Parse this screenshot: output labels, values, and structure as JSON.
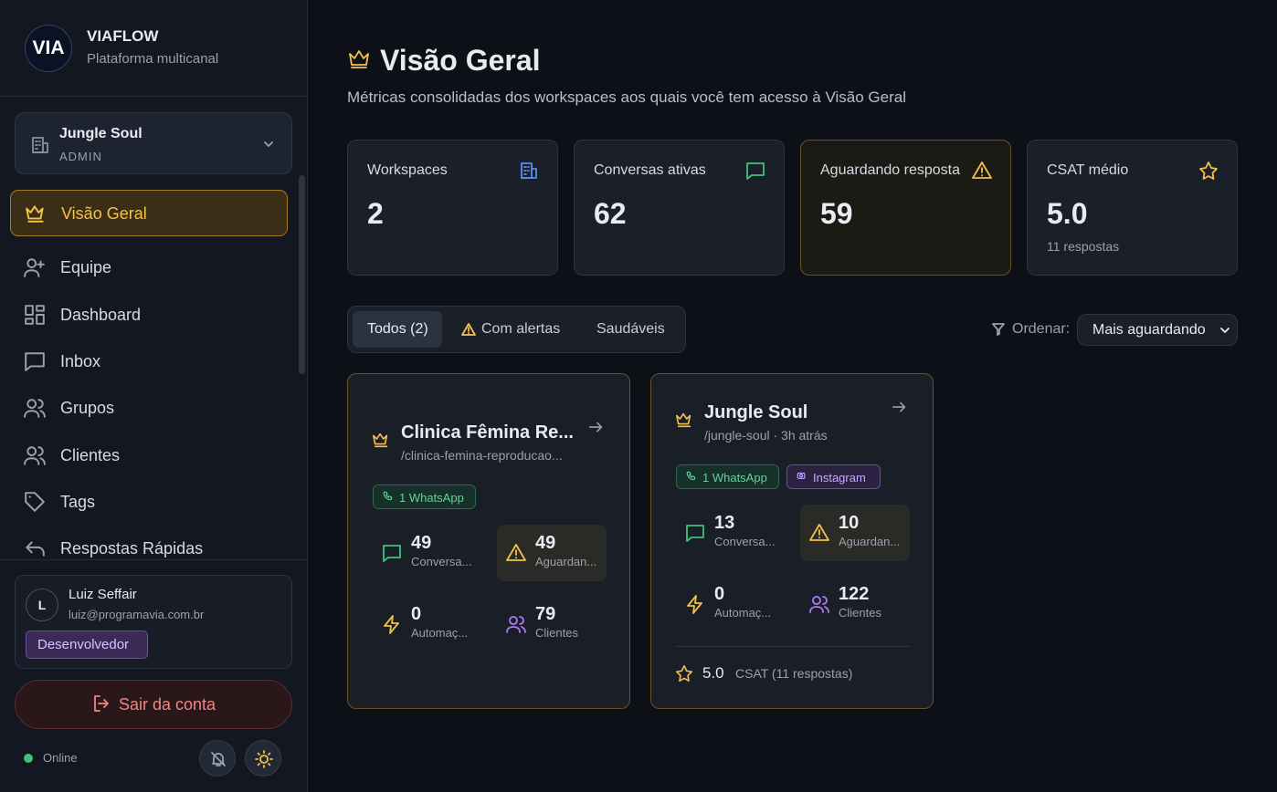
{
  "brand": {
    "logo": "VIA",
    "name": "VIAFLOW",
    "subtitle": "Plataforma multicanal"
  },
  "workspace_selector": {
    "name": "Jungle Soul",
    "role": "ADMIN"
  },
  "nav": [
    {
      "label": "Visão Geral",
      "active": true
    },
    {
      "label": "Equipe",
      "active": false
    },
    {
      "label": "Dashboard",
      "active": false
    },
    {
      "label": "Inbox",
      "active": false
    },
    {
      "label": "Grupos",
      "active": false
    },
    {
      "label": "Clientes",
      "active": false
    },
    {
      "label": "Tags",
      "active": false
    },
    {
      "label": "Respostas Rápidas",
      "active": false
    }
  ],
  "user": {
    "initial": "L",
    "name": "Luiz Seffair",
    "email": "luiz@programavia.com.br",
    "badge": "Desenvolvedor"
  },
  "logout": "Sair da conta",
  "status": "Online",
  "header": {
    "title": "Visão Geral",
    "subtitle": "Métricas consolidadas dos workspaces aos quais você tem acesso à Visão Geral"
  },
  "stats": [
    {
      "label": "Workspaces",
      "value": 2
    },
    {
      "label": "Conversas ativas",
      "value": 62
    },
    {
      "label": "Aguardando resposta",
      "value": 59
    },
    {
      "label": "CSAT médio",
      "value": "5.0",
      "note": "11 respostas"
    }
  ],
  "filters": {
    "tabs": [
      "Todos (2)",
      "Com alertas",
      "Saudáveis"
    ],
    "sort_label": "Ordenar:",
    "sort_value": "Mais aguardando"
  },
  "workspaces": [
    {
      "name": "Clinica Fêmina Re...",
      "slug": "/clinica-femina-reproducao...",
      "channels": [
        "1 WhatsApp"
      ],
      "metrics": [
        {
          "value": 49,
          "label": "Conversa..."
        },
        {
          "value": 49,
          "label": "Aguardan..."
        },
        {
          "value": 0,
          "label": "Automaç..."
        },
        {
          "value": 79,
          "label": "Clientes"
        }
      ]
    },
    {
      "name": "Jungle Soul",
      "slug": "/jungle-soul · 3h atrás",
      "channels": [
        "1 WhatsApp",
        "Instagram"
      ],
      "metrics": [
        {
          "value": 13,
          "label": "Conversa..."
        },
        {
          "value": 10,
          "label": "Aguardan..."
        },
        {
          "value": 0,
          "label": "Automaç..."
        },
        {
          "value": 122,
          "label": "Clientes"
        }
      ],
      "csat": {
        "value": "5.0",
        "label": "CSAT (11 respostas)"
      }
    }
  ]
}
